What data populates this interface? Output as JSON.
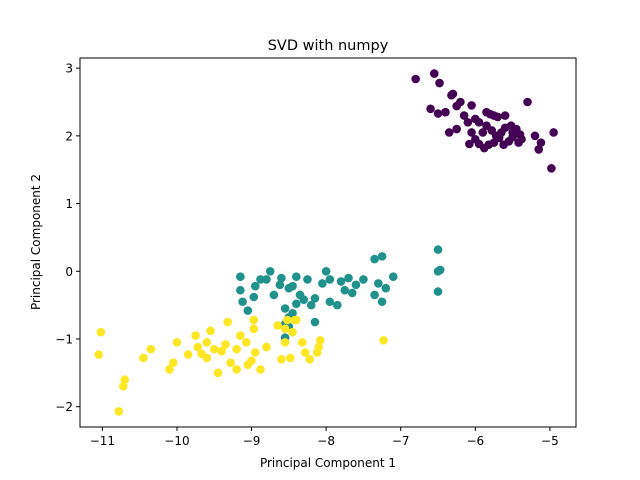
{
  "chart_data": {
    "type": "scatter",
    "title": "SVD with numpy",
    "xlabel": "Principal Component 1",
    "ylabel": "Principal Component 2",
    "xlim": [
      -11.3,
      -4.65
    ],
    "ylim": [
      -2.3,
      3.15
    ],
    "xticks": [
      -11,
      -10,
      -9,
      -8,
      -7,
      -6,
      -5
    ],
    "yticks": [
      -2,
      -1,
      0,
      1,
      2,
      3
    ],
    "xtick_labels": [
      "−11",
      "−10",
      "−9",
      "−8",
      "−7",
      "−6",
      "−5"
    ],
    "ytick_labels": [
      "−2",
      "−1",
      "0",
      "1",
      "2",
      "3"
    ],
    "grid": false,
    "legend": false,
    "series": [
      {
        "color": "#440154",
        "points": [
          [
            -6.55,
            2.92
          ],
          [
            -6.8,
            2.84
          ],
          [
            -6.48,
            2.78
          ],
          [
            -6.3,
            2.62
          ],
          [
            -6.32,
            2.6
          ],
          [
            -6.6,
            2.4
          ],
          [
            -6.2,
            2.5
          ],
          [
            -6.05,
            2.45
          ],
          [
            -6.25,
            2.44
          ],
          [
            -6.4,
            2.35
          ],
          [
            -6.15,
            2.3
          ],
          [
            -6.5,
            2.33
          ],
          [
            -6.0,
            2.25
          ],
          [
            -5.85,
            2.35
          ],
          [
            -5.8,
            2.32
          ],
          [
            -5.75,
            2.3
          ],
          [
            -5.7,
            2.28
          ],
          [
            -5.6,
            2.3
          ],
          [
            -5.3,
            2.5
          ],
          [
            -5.95,
            2.2
          ],
          [
            -5.85,
            2.15
          ],
          [
            -6.1,
            2.2
          ],
          [
            -6.35,
            2.05
          ],
          [
            -6.25,
            2.1
          ],
          [
            -6.05,
            2.05
          ],
          [
            -5.9,
            2.05
          ],
          [
            -6.0,
            1.95
          ],
          [
            -5.95,
            1.88
          ],
          [
            -5.88,
            1.82
          ],
          [
            -6.08,
            1.88
          ],
          [
            -5.72,
            2.0
          ],
          [
            -5.65,
            2.05
          ],
          [
            -5.6,
            2.12
          ],
          [
            -5.5,
            2.05
          ],
          [
            -5.45,
            2.1
          ],
          [
            -5.5,
            1.98
          ],
          [
            -5.55,
            1.92
          ],
          [
            -5.62,
            1.87
          ],
          [
            -5.4,
            2.02
          ],
          [
            -5.38,
            1.95
          ],
          [
            -5.42,
            1.9
          ],
          [
            -5.68,
            1.97
          ],
          [
            -5.75,
            1.9
          ],
          [
            -5.82,
            1.87
          ],
          [
            -5.2,
            2.0
          ],
          [
            -5.12,
            1.9
          ],
          [
            -5.15,
            1.8
          ],
          [
            -4.95,
            2.05
          ],
          [
            -4.98,
            1.52
          ],
          [
            -5.78,
            2.08
          ],
          [
            -5.52,
            2.15
          ]
        ]
      },
      {
        "color": "#21918c",
        "points": [
          [
            -6.5,
            0.32
          ],
          [
            -6.5,
            0.0
          ],
          [
            -6.47,
            0.02
          ],
          [
            -6.5,
            -0.3
          ],
          [
            -7.25,
            0.22
          ],
          [
            -7.35,
            0.18
          ],
          [
            -7.1,
            -0.08
          ],
          [
            -7.3,
            -0.18
          ],
          [
            -7.2,
            -0.25
          ],
          [
            -7.35,
            -0.35
          ],
          [
            -7.25,
            -0.45
          ],
          [
            -7.5,
            -0.12
          ],
          [
            -7.6,
            -0.2
          ],
          [
            -7.7,
            -0.1
          ],
          [
            -7.8,
            -0.15
          ],
          [
            -7.75,
            -0.28
          ],
          [
            -7.65,
            -0.32
          ],
          [
            -7.85,
            -0.5
          ],
          [
            -7.95,
            -0.45
          ],
          [
            -8.0,
            0.0
          ],
          [
            -8.05,
            -0.18
          ],
          [
            -8.15,
            -0.4
          ],
          [
            -8.2,
            -0.5
          ],
          [
            -8.15,
            -0.75
          ],
          [
            -8.25,
            -0.12
          ],
          [
            -8.4,
            -0.08
          ],
          [
            -8.45,
            -0.22
          ],
          [
            -8.35,
            -0.35
          ],
          [
            -8.4,
            -0.48
          ],
          [
            -8.3,
            -0.42
          ],
          [
            -8.5,
            -0.25
          ],
          [
            -8.55,
            -0.55
          ],
          [
            -8.45,
            -0.62
          ],
          [
            -8.5,
            -0.68
          ],
          [
            -8.55,
            -0.78
          ],
          [
            -8.6,
            -0.1
          ],
          [
            -8.62,
            -0.2
          ],
          [
            -8.7,
            -0.35
          ],
          [
            -8.8,
            -0.12
          ],
          [
            -8.75,
            0.0
          ],
          [
            -8.88,
            -0.12
          ],
          [
            -8.95,
            -0.22
          ],
          [
            -8.97,
            -0.38
          ],
          [
            -9.15,
            -0.28
          ],
          [
            -9.12,
            -0.45
          ],
          [
            -9.15,
            -0.08
          ],
          [
            -9.05,
            -0.58
          ],
          [
            -8.55,
            -0.98
          ],
          [
            -8.5,
            -0.82
          ],
          [
            -7.95,
            -0.12
          ]
        ]
      },
      {
        "color": "#fde725",
        "points": [
          [
            -11.02,
            -0.9
          ],
          [
            -11.05,
            -1.23
          ],
          [
            -10.7,
            -1.6
          ],
          [
            -10.72,
            -1.7
          ],
          [
            -10.78,
            -2.07
          ],
          [
            -10.45,
            -1.28
          ],
          [
            -10.35,
            -1.15
          ],
          [
            -10.1,
            -1.45
          ],
          [
            -10.05,
            -1.35
          ],
          [
            -10.0,
            -1.05
          ],
          [
            -9.85,
            -1.23
          ],
          [
            -9.75,
            -0.95
          ],
          [
            -9.72,
            -1.12
          ],
          [
            -9.67,
            -1.22
          ],
          [
            -9.6,
            -1.28
          ],
          [
            -9.6,
            -1.05
          ],
          [
            -9.55,
            -0.88
          ],
          [
            -9.5,
            -1.15
          ],
          [
            -9.45,
            -1.5
          ],
          [
            -9.4,
            -1.18
          ],
          [
            -9.35,
            -1.08
          ],
          [
            -9.32,
            -0.75
          ],
          [
            -9.28,
            -1.35
          ],
          [
            -9.2,
            -1.15
          ],
          [
            -9.2,
            -1.45
          ],
          [
            -9.15,
            -0.95
          ],
          [
            -9.07,
            -1.05
          ],
          [
            -9.05,
            -1.38
          ],
          [
            -9.0,
            -1.32
          ],
          [
            -8.97,
            -0.85
          ],
          [
            -8.97,
            -0.72
          ],
          [
            -8.95,
            -1.2
          ],
          [
            -8.88,
            -1.45
          ],
          [
            -8.8,
            -1.12
          ],
          [
            -8.65,
            -0.8
          ],
          [
            -8.6,
            -1.3
          ],
          [
            -8.55,
            -1.05
          ],
          [
            -8.55,
            -0.85
          ],
          [
            -8.52,
            -0.72
          ],
          [
            -8.48,
            -1.28
          ],
          [
            -8.45,
            -0.9
          ],
          [
            -8.42,
            -0.72
          ],
          [
            -8.4,
            -0.72
          ],
          [
            -8.32,
            -1.05
          ],
          [
            -8.28,
            -1.2
          ],
          [
            -8.22,
            -1.3
          ],
          [
            -8.12,
            -1.2
          ],
          [
            -8.1,
            -1.12
          ],
          [
            -8.08,
            -1.02
          ],
          [
            -7.23,
            -1.02
          ]
        ]
      }
    ]
  }
}
